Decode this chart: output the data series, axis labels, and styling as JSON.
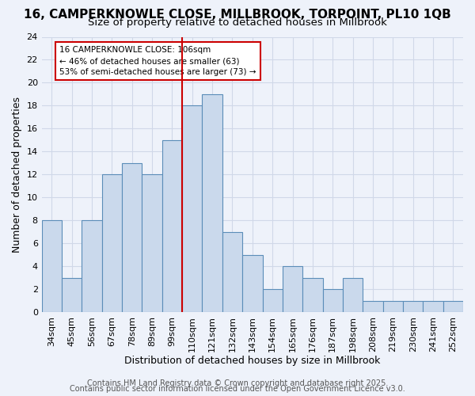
{
  "title": "16, CAMPERKNOWLE CLOSE, MILLBROOK, TORPOINT, PL10 1QB",
  "subtitle": "Size of property relative to detached houses in Millbrook",
  "xlabel": "Distribution of detached houses by size in Millbrook",
  "ylabel": "Number of detached properties",
  "bin_labels": [
    "34sqm",
    "45sqm",
    "56sqm",
    "67sqm",
    "78sqm",
    "89sqm",
    "99sqm",
    "110sqm",
    "121sqm",
    "132sqm",
    "143sqm",
    "154sqm",
    "165sqm",
    "176sqm",
    "187sqm",
    "198sqm",
    "208sqm",
    "219sqm",
    "230sqm",
    "241sqm",
    "252sqm"
  ],
  "bar_values": [
    8,
    3,
    8,
    12,
    13,
    12,
    15,
    18,
    19,
    7,
    5,
    2,
    4,
    3,
    2,
    3,
    1,
    1,
    1,
    1,
    1
  ],
  "bar_color": "#cad9ec",
  "bar_edge_color": "#5b8db8",
  "vline_x_idx": 7,
  "vline_color": "#cc0000",
  "annotation_text": "16 CAMPERKNOWLE CLOSE: 106sqm\n← 46% of detached houses are smaller (63)\n53% of semi-detached houses are larger (73) →",
  "annotation_box_color": "#ffffff",
  "annotation_box_edge": "#cc0000",
  "ylim": [
    0,
    24
  ],
  "yticks": [
    0,
    2,
    4,
    6,
    8,
    10,
    12,
    14,
    16,
    18,
    20,
    22,
    24
  ],
  "grid_color": "#d0d8e8",
  "bg_color": "#eef2fa",
  "footer_line1": "Contains HM Land Registry data © Crown copyright and database right 2025.",
  "footer_line2": "Contains public sector information licensed under the Open Government Licence v3.0.",
  "title_fontsize": 11,
  "subtitle_fontsize": 9.5,
  "axis_label_fontsize": 9,
  "tick_fontsize": 8,
  "footer_fontsize": 7
}
